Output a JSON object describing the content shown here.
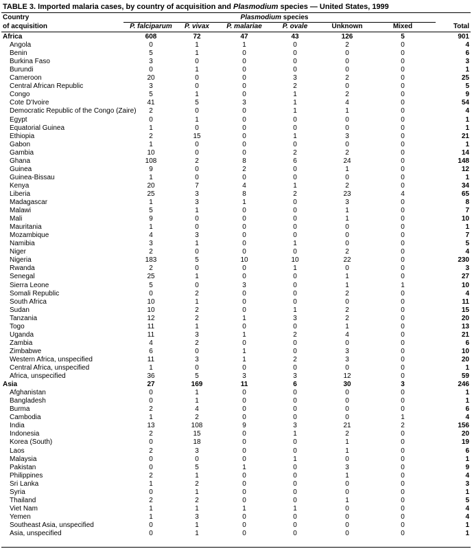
{
  "header": {
    "title": [
      "TABLE 3. Imported malaria cases, by country of acquisition and ",
      "Plasmodium",
      " species — United States, 1999"
    ]
  },
  "table": {
    "country_header": [
      "Country",
      "of acquisition"
    ],
    "species_header": [
      "Plasmodium",
      " species"
    ],
    "columns": [
      "P. falciparum",
      "P. vivax",
      "P. malariae",
      "P. ovale",
      "Unknown",
      "Mixed",
      "Total"
    ],
    "groups": [
      {
        "total_row": [
          "Africa",
          608,
          72,
          47,
          43,
          126,
          5,
          901
        ],
        "rows": [
          [
            "Angola",
            0,
            1,
            1,
            0,
            2,
            0,
            4
          ],
          [
            "Benin",
            5,
            1,
            0,
            0,
            0,
            0,
            6
          ],
          [
            "Burkina Faso",
            3,
            0,
            0,
            0,
            0,
            0,
            3
          ],
          [
            "Burundi",
            0,
            1,
            0,
            0,
            0,
            0,
            1
          ],
          [
            "Cameroon",
            20,
            0,
            0,
            3,
            2,
            0,
            25
          ],
          [
            "Central African Republic",
            3,
            0,
            0,
            2,
            0,
            0,
            5
          ],
          [
            "Congo",
            5,
            1,
            0,
            1,
            2,
            0,
            9
          ],
          [
            "Cote D'Ivoire",
            41,
            5,
            3,
            1,
            4,
            0,
            54
          ],
          [
            "Democratic Republic of the Congo (Zaire)",
            2,
            0,
            0,
            1,
            1,
            0,
            4
          ],
          [
            "Egypt",
            0,
            1,
            0,
            0,
            0,
            0,
            1
          ],
          [
            "Equatorial Guinea",
            1,
            0,
            0,
            0,
            0,
            0,
            1
          ],
          [
            "Ethiopia",
            2,
            15,
            0,
            1,
            3,
            0,
            21
          ],
          [
            "Gabon",
            1,
            0,
            0,
            0,
            0,
            0,
            1
          ],
          [
            "Gambia",
            10,
            0,
            0,
            2,
            2,
            0,
            14
          ],
          [
            "Ghana",
            108,
            2,
            8,
            6,
            24,
            0,
            148
          ],
          [
            "Guinea",
            9,
            0,
            2,
            0,
            1,
            0,
            12
          ],
          [
            "Guinea-Bissau",
            1,
            0,
            0,
            0,
            0,
            0,
            1
          ],
          [
            "Kenya",
            20,
            7,
            4,
            1,
            2,
            0,
            34
          ],
          [
            "Liberia",
            25,
            3,
            8,
            2,
            23,
            4,
            65
          ],
          [
            "Madagascar",
            1,
            3,
            1,
            0,
            3,
            0,
            8
          ],
          [
            "Malawi",
            5,
            1,
            0,
            0,
            1,
            0,
            7
          ],
          [
            "Mali",
            9,
            0,
            0,
            0,
            1,
            0,
            10
          ],
          [
            "Mauritania",
            1,
            0,
            0,
            0,
            0,
            0,
            1
          ],
          [
            "Mozambique",
            4,
            3,
            0,
            0,
            0,
            0,
            7
          ],
          [
            "Namibia",
            3,
            1,
            0,
            1,
            0,
            0,
            5
          ],
          [
            "Niger",
            2,
            0,
            0,
            0,
            2,
            0,
            4
          ],
          [
            "Nigeria",
            183,
            5,
            10,
            10,
            22,
            0,
            230
          ],
          [
            "Rwanda",
            2,
            0,
            0,
            1,
            0,
            0,
            3
          ],
          [
            "Senegal",
            25,
            1,
            0,
            0,
            1,
            0,
            27
          ],
          [
            "Sierra Leone",
            5,
            0,
            3,
            0,
            1,
            1,
            10
          ],
          [
            "Somali Republic",
            0,
            2,
            0,
            0,
            2,
            0,
            4
          ],
          [
            "South Africa",
            10,
            1,
            0,
            0,
            0,
            0,
            11
          ],
          [
            "Sudan",
            10,
            2,
            0,
            1,
            2,
            0,
            15
          ],
          [
            "Tanzania",
            12,
            2,
            1,
            3,
            2,
            0,
            20
          ],
          [
            "Togo",
            11,
            1,
            0,
            0,
            1,
            0,
            13
          ],
          [
            "Uganda",
            11,
            3,
            1,
            2,
            4,
            0,
            21
          ],
          [
            "Zambia",
            4,
            2,
            0,
            0,
            0,
            0,
            6
          ],
          [
            "Zimbabwe",
            6,
            0,
            1,
            0,
            3,
            0,
            10
          ],
          [
            "Western Africa, unspecified",
            11,
            3,
            1,
            2,
            3,
            0,
            20
          ],
          [
            "Central Africa, unspecified",
            1,
            0,
            0,
            0,
            0,
            0,
            1
          ],
          [
            "Africa, unspecified",
            36,
            5,
            3,
            3,
            12,
            0,
            59
          ]
        ]
      },
      {
        "total_row": [
          "Asia",
          27,
          169,
          11,
          6,
          30,
          3,
          246
        ],
        "rows": [
          [
            "Afghanistan",
            0,
            1,
            0,
            0,
            0,
            0,
            1
          ],
          [
            "Bangladesh",
            0,
            1,
            0,
            0,
            0,
            0,
            1
          ],
          [
            "Burma",
            2,
            4,
            0,
            0,
            0,
            0,
            6
          ],
          [
            "Cambodia",
            1,
            2,
            0,
            0,
            0,
            1,
            4
          ],
          [
            "India",
            13,
            108,
            9,
            3,
            21,
            2,
            156
          ],
          [
            "Indonesia",
            2,
            15,
            0,
            1,
            2,
            0,
            20
          ],
          [
            "Korea (South)",
            0,
            18,
            0,
            0,
            1,
            0,
            19
          ],
          [
            "Laos",
            2,
            3,
            0,
            0,
            1,
            0,
            6
          ],
          [
            "Malaysia",
            0,
            0,
            0,
            1,
            0,
            0,
            1
          ],
          [
            "Pakistan",
            0,
            5,
            1,
            0,
            3,
            0,
            9
          ],
          [
            "Philippines",
            2,
            1,
            0,
            0,
            1,
            0,
            4
          ],
          [
            "Sri Lanka",
            1,
            2,
            0,
            0,
            0,
            0,
            3
          ],
          [
            "Syria",
            0,
            1,
            0,
            0,
            0,
            0,
            1
          ],
          [
            "Thailand",
            2,
            2,
            0,
            0,
            1,
            0,
            5
          ],
          [
            "Viet Nam",
            1,
            1,
            1,
            1,
            0,
            0,
            4
          ],
          [
            "Yemen",
            1,
            3,
            0,
            0,
            0,
            0,
            4
          ],
          [
            "Southeast Asia, unspecified",
            0,
            1,
            0,
            0,
            0,
            0,
            1
          ],
          [
            "Asia, unspecified",
            0,
            1,
            0,
            0,
            0,
            0,
            1
          ]
        ]
      }
    ]
  }
}
